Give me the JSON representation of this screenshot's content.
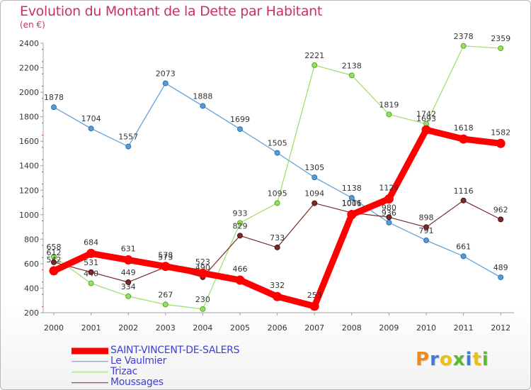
{
  "title": "Evolution du Montant de la Dette par Habitant",
  "unit": "(en €)",
  "logo_text": "Proxiti",
  "chart_data": {
    "type": "line",
    "title": "Evolution du Montant de la Dette par Habitant",
    "ylabel": "(en €)",
    "xlabel": "",
    "x": [
      "2000",
      "2001",
      "2002",
      "2003",
      "2004",
      "2005",
      "2006",
      "2007",
      "2008",
      "2009",
      "2010",
      "2011",
      "2012"
    ],
    "ylim": [
      200,
      2400
    ],
    "yticks": [
      200,
      400,
      600,
      800,
      1000,
      1200,
      1400,
      1600,
      1800,
      2000,
      2200,
      2400
    ],
    "grid": false,
    "legend_position": "bottom-left",
    "series": [
      {
        "name": "SAINT-VINCENT-DE-SALERS",
        "color": "#ff0000",
        "values": [
          542,
          684,
          631,
          578,
          523,
          466,
          332,
          253,
          1001,
          1129,
          1693,
          1618,
          1582
        ]
      },
      {
        "name": "Le Vaulmier",
        "color": "#5b9bd5",
        "values": [
          1878,
          1704,
          1557,
          2073,
          1888,
          1699,
          1505,
          1305,
          1138,
          936,
          791,
          661,
          489
        ]
      },
      {
        "name": "Trizac",
        "color": "#99dd66",
        "values": [
          658,
          440,
          334,
          267,
          230,
          933,
          1095,
          2221,
          2138,
          1819,
          1742,
          2378,
          2359
        ]
      },
      {
        "name": "Moussages",
        "color": "#7a2a2a",
        "values": [
          612,
          531,
          449,
          573,
          490,
          829,
          733,
          1094,
          1016,
          980,
          898,
          1116,
          962
        ]
      }
    ]
  }
}
